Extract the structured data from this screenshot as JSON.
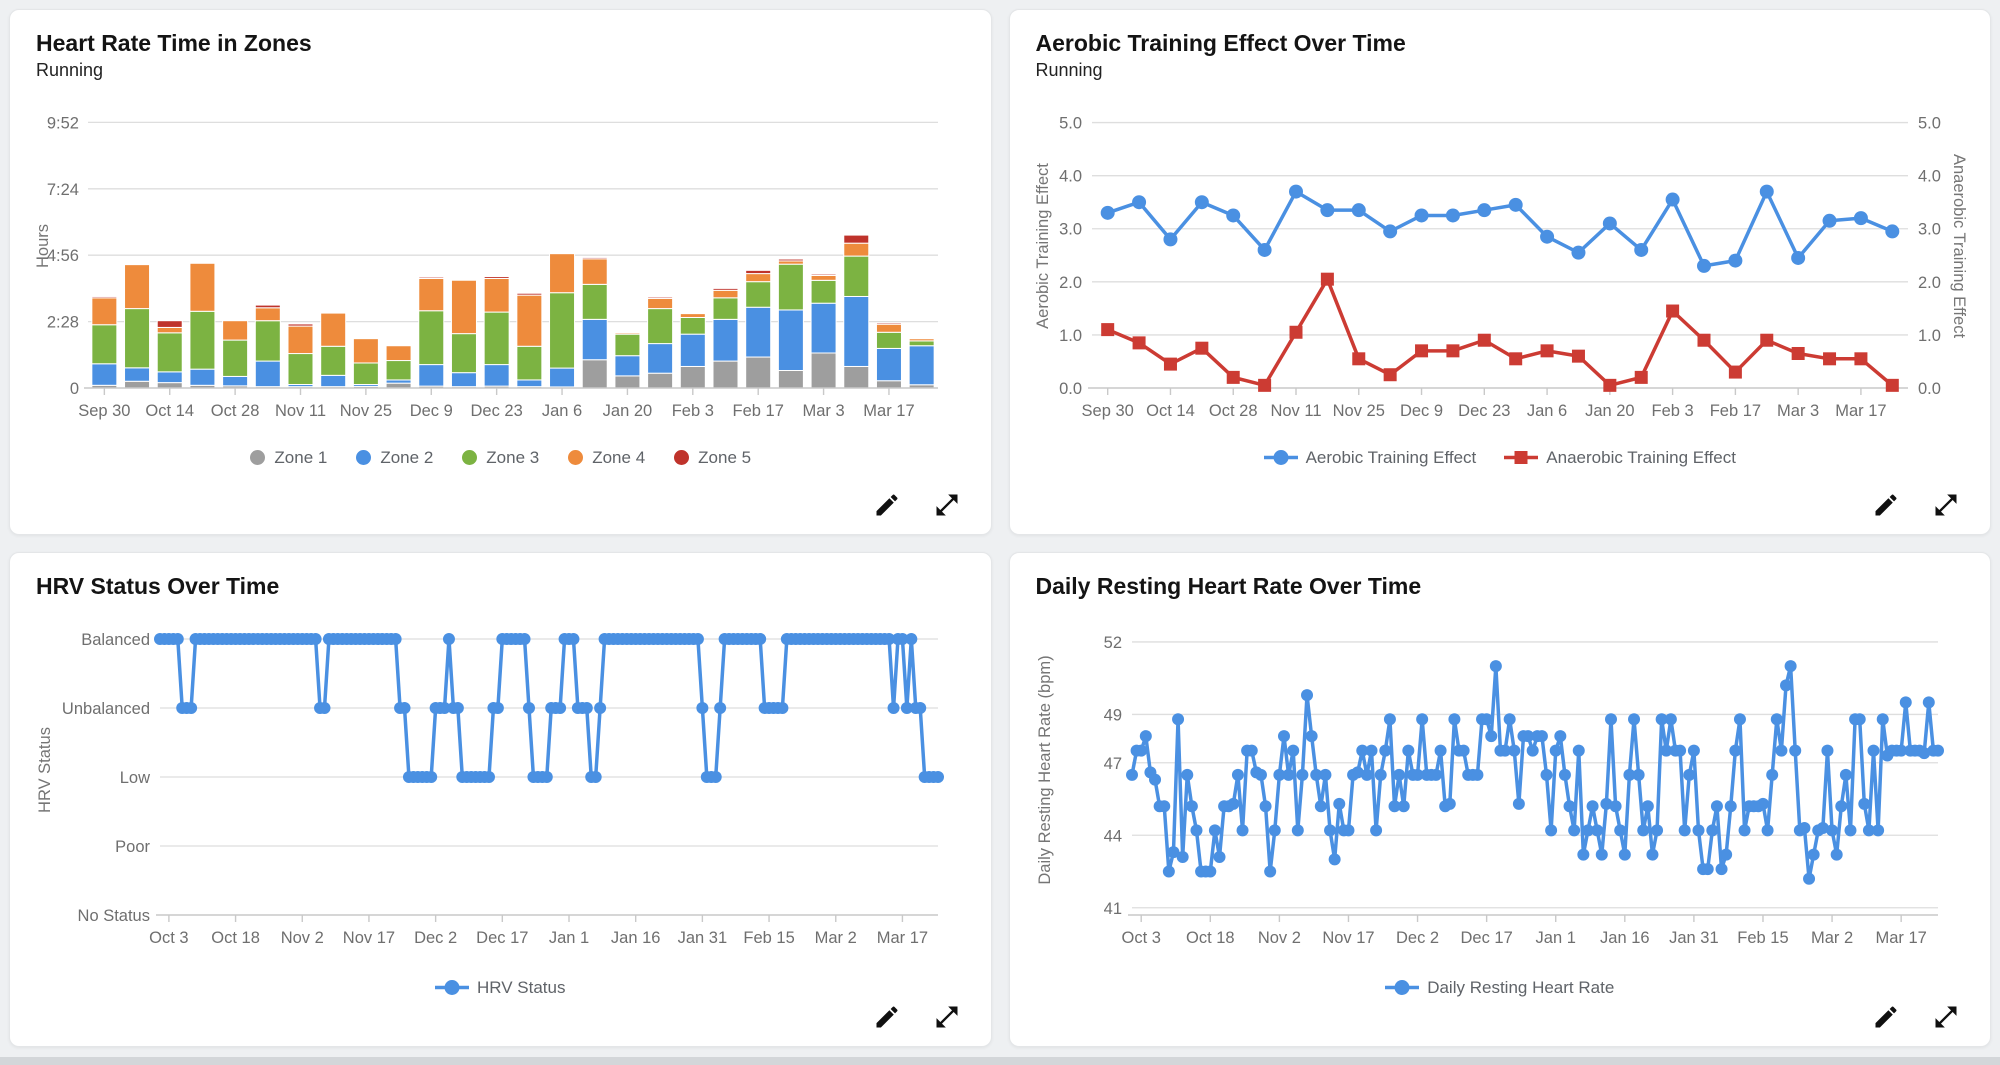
{
  "panels": [
    {
      "title": "Heart Rate Time in Zones",
      "subtitle": "Running"
    },
    {
      "title": "Aerobic Training Effect Over Time",
      "subtitle": "Running"
    },
    {
      "title": "HRV Status Over Time"
    },
    {
      "title": "Daily Resting Heart Rate Over Time"
    }
  ],
  "theme": {
    "page_bg": "#eef0f2",
    "card_bg": "#ffffff",
    "card_border": "#e4e6e8",
    "grid": "#dedede",
    "axis_line": "#c9c9c9",
    "tick_text": "#6f6f6f",
    "axis_title": "#757575",
    "title_text": "#141414",
    "legend_text": "#5f6368",
    "icon": "#101010",
    "zone1": "#9e9e9e",
    "zone2": "#4a90e2",
    "zone3": "#7cb342",
    "zone4": "#ee8b3c",
    "zone5": "#bf332b",
    "blue_line": "#4a90e2",
    "red_line": "#cc3b33"
  },
  "chart_data": [
    {
      "type": "bar",
      "stacked": true,
      "title": "Heart Rate Time in Zones",
      "subtitle": "Running",
      "ylabel": "Hours",
      "ylim": [
        0,
        10.55
      ],
      "y_ticks": [
        {
          "value": 0,
          "label": "0"
        },
        {
          "value": 2.4667,
          "label": "2:28"
        },
        {
          "value": 4.9333,
          "label": "4:56"
        },
        {
          "value": 7.4,
          "label": "7:24"
        },
        {
          "value": 9.8667,
          "label": "9:52"
        }
      ],
      "categories": [
        "Sep 30",
        "Oct 7",
        "Oct 14",
        "Oct 21",
        "Oct 28",
        "Nov 4",
        "Nov 11",
        "Nov 18",
        "Nov 25",
        "Dec 2",
        "Dec 9",
        "Dec 16",
        "Dec 23",
        "Dec 30",
        "Jan 6",
        "Jan 13",
        "Jan 20",
        "Jan 27",
        "Feb 3",
        "Feb 10",
        "Feb 17",
        "Feb 24",
        "Mar 3",
        "Mar 10",
        "Mar 17",
        "Mar 24"
      ],
      "x_ticks_every": 2,
      "legend_position": "bottom",
      "series": [
        {
          "name": "Zone 1",
          "color": "#9e9e9e",
          "values": [
            0.1,
            0.25,
            0.2,
            0.1,
            0.08,
            0.05,
            0.05,
            0.05,
            0.06,
            0.18,
            0.07,
            0.05,
            0.07,
            0.05,
            0.04,
            1.05,
            0.45,
            0.55,
            0.8,
            1.0,
            1.15,
            0.65,
            1.3,
            0.8,
            0.27,
            0.12
          ]
        },
        {
          "name": "Zone 2",
          "color": "#4a90e2",
          "values": [
            0.8,
            0.5,
            0.4,
            0.6,
            0.35,
            0.95,
            0.08,
            0.42,
            0.07,
            0.12,
            0.8,
            0.52,
            0.8,
            0.25,
            0.7,
            1.5,
            0.75,
            1.1,
            1.2,
            1.55,
            1.85,
            2.25,
            1.85,
            2.6,
            1.2,
            1.45
          ]
        },
        {
          "name": "Zone 3",
          "color": "#7cb342",
          "values": [
            1.45,
            2.2,
            1.45,
            2.15,
            1.35,
            1.5,
            1.15,
            1.08,
            0.8,
            0.72,
            2.0,
            1.45,
            1.95,
            1.25,
            2.8,
            1.3,
            0.8,
            1.3,
            0.62,
            0.8,
            0.95,
            1.7,
            0.85,
            1.5,
            0.6,
            0.18
          ]
        },
        {
          "name": "Zone 4",
          "color": "#ee8b3c",
          "values": [
            1.0,
            1.65,
            0.2,
            1.8,
            0.72,
            0.48,
            1.02,
            1.25,
            0.92,
            0.55,
            1.2,
            2.0,
            1.25,
            1.9,
            1.45,
            0.95,
            0.05,
            0.38,
            0.15,
            0.28,
            0.3,
            0.12,
            0.18,
            0.48,
            0.3,
            0.08
          ]
        },
        {
          "name": "Zone 5",
          "color": "#bf332b",
          "values": [
            0.05,
            0.02,
            0.25,
            0.02,
            0,
            0.1,
            0.08,
            0.02,
            0.02,
            0,
            0.05,
            0.02,
            0.07,
            0.07,
            0,
            0.05,
            0,
            0.05,
            0.03,
            0.07,
            0.12,
            0.07,
            0.05,
            0.3,
            0.05,
            0
          ]
        }
      ]
    },
    {
      "type": "line",
      "title": "Aerobic Training Effect Over Time",
      "subtitle": "Running",
      "ylabel_left": "Aerobic Training Effect",
      "ylabel_right": "Anaerobic Training Effect",
      "ylim": [
        0,
        5.35
      ],
      "y_ticks": [
        0,
        1,
        2,
        3,
        4,
        5
      ],
      "y_tick_format": "one_decimal",
      "categories": [
        "Sep 30",
        "Oct 7",
        "Oct 14",
        "Oct 21",
        "Oct 28",
        "Nov 4",
        "Nov 11",
        "Nov 18",
        "Nov 25",
        "Dec 2",
        "Dec 9",
        "Dec 16",
        "Dec 23",
        "Dec 30",
        "Jan 6",
        "Jan 13",
        "Jan 20",
        "Jan 27",
        "Feb 3",
        "Feb 10",
        "Feb 17",
        "Feb 24",
        "Mar 3",
        "Mar 10",
        "Mar 17",
        "Mar 24"
      ],
      "x_ticks_every": 2,
      "legend_position": "bottom",
      "series": [
        {
          "name": "Aerobic Training Effect",
          "color": "#4a90e2",
          "marker": "circle",
          "values": [
            3.3,
            3.5,
            2.8,
            3.5,
            3.25,
            2.6,
            3.7,
            3.35,
            3.35,
            2.95,
            3.25,
            3.25,
            3.35,
            3.45,
            2.85,
            2.55,
            3.1,
            2.6,
            3.55,
            2.3,
            2.4,
            3.7,
            2.45,
            3.15,
            3.2,
            2.95
          ]
        },
        {
          "name": "Anaerobic Training Effect",
          "color": "#cc3b33",
          "marker": "square",
          "values": [
            1.1,
            0.85,
            0.45,
            0.75,
            0.2,
            0.05,
            1.05,
            2.05,
            0.55,
            0.25,
            0.7,
            0.7,
            0.9,
            0.55,
            0.7,
            0.6,
            0.05,
            0.2,
            1.45,
            0.9,
            0.3,
            0.9,
            0.65,
            0.55,
            0.55,
            0.05
          ]
        }
      ]
    },
    {
      "type": "line",
      "subtype": "categorical_daily",
      "title": "HRV Status Over Time",
      "ylabel": "HRV Status",
      "y_categories": [
        "No Status",
        "Poor",
        "Low",
        "Unbalanced",
        "Balanced"
      ],
      "legend": [
        {
          "name": "HRV Status",
          "color": "#4a90e2",
          "marker": "circle"
        }
      ],
      "x_tick_labels": [
        "Oct 3",
        "Oct 18",
        "Nov 2",
        "Nov 17",
        "Dec 2",
        "Dec 17",
        "Jan 1",
        "Jan 16",
        "Jan 31",
        "Feb 15",
        "Mar 2",
        "Mar 17"
      ],
      "x_tick_day_index": [
        2,
        17,
        32,
        47,
        62,
        77,
        92,
        107,
        122,
        137,
        152,
        167
      ],
      "runs": [
        [
          "Balanced",
          5
        ],
        [
          "Unbalanced",
          3
        ],
        [
          "Balanced",
          28
        ],
        [
          "Unbalanced",
          2
        ],
        [
          "Balanced",
          16
        ],
        [
          "Unbalanced",
          2
        ],
        [
          "Low",
          6
        ],
        [
          "Unbalanced",
          3
        ],
        [
          "Balanced",
          1
        ],
        [
          "Unbalanced",
          2
        ],
        [
          "Low",
          7
        ],
        [
          "Unbalanced",
          2
        ],
        [
          "Balanced",
          6
        ],
        [
          "Unbalanced",
          1
        ],
        [
          "Low",
          4
        ],
        [
          "Unbalanced",
          3
        ],
        [
          "Balanced",
          3
        ],
        [
          "Unbalanced",
          3
        ],
        [
          "Low",
          2
        ],
        [
          "Unbalanced",
          1
        ],
        [
          "Balanced",
          22
        ],
        [
          "Unbalanced",
          1
        ],
        [
          "Low",
          3
        ],
        [
          "Unbalanced",
          1
        ],
        [
          "Balanced",
          9
        ],
        [
          "Unbalanced",
          5
        ],
        [
          "Balanced",
          24
        ],
        [
          "Unbalanced",
          1
        ],
        [
          "Balanced",
          2
        ],
        [
          "Unbalanced",
          1
        ],
        [
          "Balanced",
          1
        ],
        [
          "Unbalanced",
          2
        ],
        [
          "Low",
          4
        ]
      ]
    },
    {
      "type": "line",
      "subtype": "numeric_daily",
      "title": "Daily Resting Heart Rate Over Time",
      "ylabel": "Daily Resting Heart Rate (bpm)",
      "ylim": [
        40.7,
        52.7
      ],
      "y_ticks": [
        41,
        44,
        47,
        49,
        52
      ],
      "legend": [
        {
          "name": "Daily Resting Heart Rate",
          "color": "#4a90e2",
          "marker": "circle"
        }
      ],
      "x_tick_labels": [
        "Oct 3",
        "Oct 18",
        "Nov 2",
        "Nov 17",
        "Dec 2",
        "Dec 17",
        "Jan 1",
        "Jan 16",
        "Jan 31",
        "Feb 15",
        "Mar 2",
        "Mar 17"
      ],
      "x_tick_day_index": [
        2,
        17,
        32,
        47,
        62,
        77,
        92,
        107,
        122,
        137,
        152,
        167
      ],
      "values": [
        46.5,
        47.5,
        47.5,
        48.1,
        46.6,
        46.3,
        45.2,
        45.2,
        42.5,
        43.3,
        48.8,
        43.1,
        46.5,
        45.2,
        44.2,
        42.5,
        42.5,
        42.5,
        44.2,
        43.1,
        45.2,
        45.2,
        45.3,
        46.5,
        44.2,
        47.5,
        47.5,
        46.6,
        46.5,
        45.2,
        42.5,
        44.2,
        46.5,
        48.1,
        46.5,
        47.5,
        44.2,
        46.5,
        49.8,
        48.1,
        46.5,
        45.2,
        46.5,
        44.2,
        43.0,
        45.3,
        44.2,
        44.2,
        46.5,
        46.6,
        47.5,
        46.5,
        47.5,
        44.2,
        46.5,
        47.5,
        48.8,
        45.2,
        46.5,
        45.2,
        47.5,
        46.5,
        46.5,
        48.8,
        46.5,
        46.5,
        46.5,
        47.5,
        45.2,
        45.3,
        48.8,
        47.5,
        47.5,
        46.5,
        46.5,
        46.5,
        48.8,
        48.8,
        48.1,
        51.0,
        47.5,
        47.5,
        48.8,
        47.5,
        45.3,
        48.1,
        48.1,
        47.5,
        48.1,
        48.1,
        46.5,
        44.2,
        47.5,
        48.1,
        46.5,
        45.2,
        44.2,
        47.5,
        43.2,
        44.2,
        45.2,
        44.2,
        43.2,
        45.3,
        48.8,
        45.2,
        44.2,
        43.2,
        46.5,
        48.8,
        46.5,
        44.2,
        45.2,
        43.2,
        44.2,
        48.8,
        47.5,
        48.8,
        47.5,
        47.5,
        44.2,
        46.5,
        47.5,
        44.2,
        42.6,
        42.6,
        44.2,
        45.2,
        42.6,
        43.2,
        45.2,
        47.5,
        48.8,
        44.2,
        45.2,
        45.2,
        45.2,
        45.3,
        44.2,
        46.5,
        48.8,
        47.5,
        50.2,
        51.0,
        47.5,
        44.2,
        44.3,
        42.2,
        43.2,
        44.2,
        44.3,
        47.5,
        44.2,
        43.2,
        45.2,
        46.5,
        44.2,
        48.8,
        48.8,
        45.3,
        44.2,
        47.5,
        44.2,
        48.8,
        47.3,
        47.5,
        47.5,
        47.5,
        49.5,
        47.5,
        47.5,
        47.5,
        47.4,
        49.5,
        47.5,
        47.5
      ]
    }
  ],
  "icons": {
    "edit": "edit-pencil",
    "expand": "expand-arrows"
  }
}
